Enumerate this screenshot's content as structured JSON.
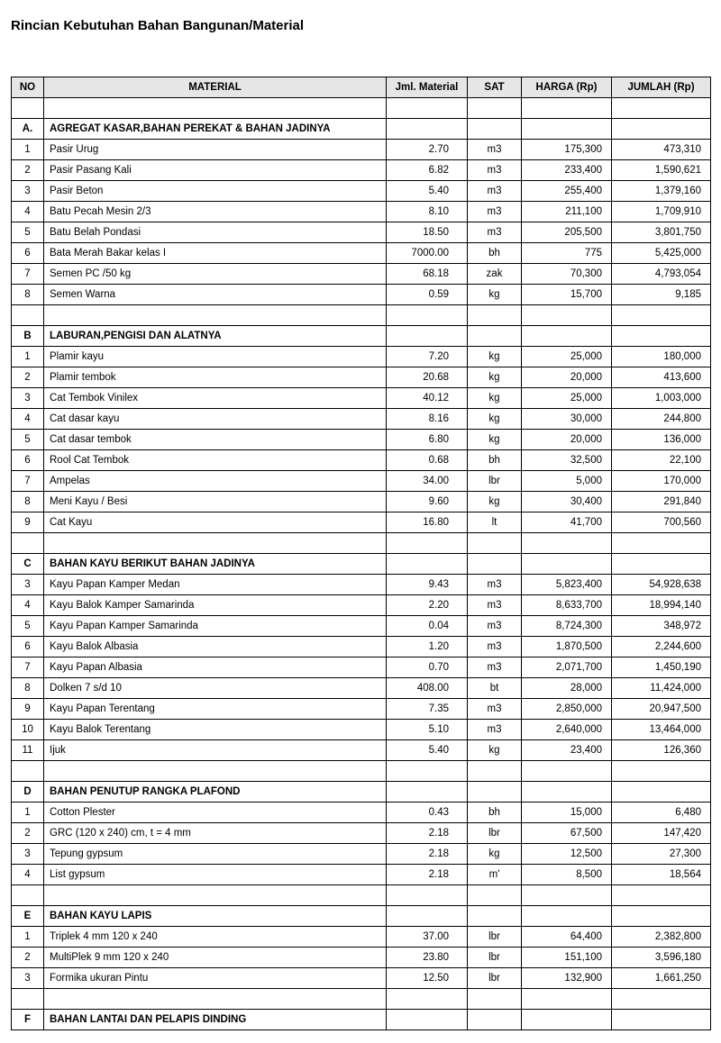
{
  "title": "Rincian Kebutuhan Bahan Bangunan/Material",
  "columns": [
    "NO",
    "MATERIAL",
    "Jml. Material",
    "SAT",
    "HARGA (Rp)",
    "JUMLAH (Rp)"
  ],
  "rows": [
    {
      "t": "blank"
    },
    {
      "t": "section",
      "no": "A.",
      "mat": "AGREGAT KASAR,BAHAN PEREKAT & BAHAN JADINYA"
    },
    {
      "t": "item",
      "no": "1",
      "mat": "Pasir Urug",
      "jml": "2.70",
      "sat": "m3",
      "hg": "175,300",
      "jm": "473,310"
    },
    {
      "t": "item",
      "no": "2",
      "mat": "Pasir Pasang Kali",
      "jml": "6.82",
      "sat": "m3",
      "hg": "233,400",
      "jm": "1,590,621"
    },
    {
      "t": "item",
      "no": "3",
      "mat": "Pasir Beton",
      "jml": "5.40",
      "sat": "m3",
      "hg": "255,400",
      "jm": "1,379,160"
    },
    {
      "t": "item",
      "no": "4",
      "mat": "Batu Pecah Mesin 2/3",
      "jml": "8.10",
      "sat": "m3",
      "hg": "211,100",
      "jm": "1,709,910"
    },
    {
      "t": "item",
      "no": "5",
      "mat": "Batu Belah Pondasi",
      "jml": "18.50",
      "sat": "m3",
      "hg": "205,500",
      "jm": "3,801,750"
    },
    {
      "t": "item",
      "no": "6",
      "mat": "Bata Merah Bakar kelas I",
      "jml": "7000.00",
      "sat": "bh",
      "hg": "775",
      "jm": "5,425,000"
    },
    {
      "t": "item",
      "no": "7",
      "mat": "Semen PC /50 kg",
      "jml": "68.18",
      "sat": "zak",
      "hg": "70,300",
      "jm": "4,793,054"
    },
    {
      "t": "item",
      "no": "8",
      "mat": "Semen Warna",
      "jml": "0.59",
      "sat": "kg",
      "hg": "15,700",
      "jm": "9,185"
    },
    {
      "t": "blank"
    },
    {
      "t": "section",
      "no": "B",
      "mat": "LABURAN,PENGISI DAN ALATNYA"
    },
    {
      "t": "item",
      "no": "1",
      "mat": "Plamir kayu",
      "jml": "7.20",
      "sat": "kg",
      "hg": "25,000",
      "jm": "180,000"
    },
    {
      "t": "item",
      "no": "2",
      "mat": "Plamir tembok",
      "jml": "20.68",
      "sat": "kg",
      "hg": "20,000",
      "jm": "413,600"
    },
    {
      "t": "item",
      "no": "3",
      "mat": "Cat Tembok Vinilex",
      "jml": "40.12",
      "sat": "kg",
      "hg": "25,000",
      "jm": "1,003,000"
    },
    {
      "t": "item",
      "no": "4",
      "mat": "Cat dasar  kayu",
      "jml": "8.16",
      "sat": "kg",
      "hg": "30,000",
      "jm": "244,800"
    },
    {
      "t": "item",
      "no": "5",
      "mat": "Cat dasar tembok",
      "jml": "6.80",
      "sat": "kg",
      "hg": "20,000",
      "jm": "136,000"
    },
    {
      "t": "item",
      "no": "6",
      "mat": "Rool Cat Tembok",
      "jml": "0.68",
      "sat": "bh",
      "hg": "32,500",
      "jm": "22,100"
    },
    {
      "t": "item",
      "no": "7",
      "mat": "Ampelas",
      "jml": "34.00",
      "sat": "lbr",
      "hg": "5,000",
      "jm": "170,000"
    },
    {
      "t": "item",
      "no": "8",
      "mat": "Meni Kayu / Besi",
      "jml": "9.60",
      "sat": "kg",
      "hg": "30,400",
      "jm": "291,840"
    },
    {
      "t": "item",
      "no": "9",
      "mat": "Cat Kayu",
      "jml": "16.80",
      "sat": "lt",
      "hg": "41,700",
      "jm": "700,560"
    },
    {
      "t": "blank"
    },
    {
      "t": "section",
      "no": "C",
      "mat": "BAHAN KAYU BERIKUT BAHAN JADINYA"
    },
    {
      "t": "item",
      "no": "3",
      "mat": "Kayu Papan Kamper Medan",
      "jml": "9.43",
      "sat": "m3",
      "hg": "5,823,400",
      "jm": "54,928,638"
    },
    {
      "t": "item",
      "no": "4",
      "mat": "Kayu Balok Kamper Samarinda",
      "jml": "2.20",
      "sat": "m3",
      "hg": "8,633,700",
      "jm": "18,994,140"
    },
    {
      "t": "item",
      "no": "5",
      "mat": "Kayu Papan Kamper Samarinda",
      "jml": "0.04",
      "sat": "m3",
      "hg": "8,724,300",
      "jm": "348,972"
    },
    {
      "t": "item",
      "no": "6",
      "mat": "Kayu Balok Albasia",
      "jml": "1.20",
      "sat": "m3",
      "hg": "1,870,500",
      "jm": "2,244,600"
    },
    {
      "t": "item",
      "no": "7",
      "mat": "Kayu Papan Albasia",
      "jml": "0.70",
      "sat": "m3",
      "hg": "2,071,700",
      "jm": "1,450,190"
    },
    {
      "t": "item",
      "no": "8",
      "mat": "Dolken 7 s/d 10",
      "jml": "408.00",
      "sat": "bt",
      "hg": "28,000",
      "jm": "11,424,000"
    },
    {
      "t": "item",
      "no": "9",
      "mat": "Kayu Papan Terentang",
      "jml": "7.35",
      "sat": "m3",
      "hg": "2,850,000",
      "jm": "20,947,500"
    },
    {
      "t": "item",
      "no": "10",
      "mat": "Kayu Balok Terentang",
      "jml": "5.10",
      "sat": "m3",
      "hg": "2,640,000",
      "jm": "13,464,000"
    },
    {
      "t": "item",
      "no": "11",
      "mat": "Ijuk",
      "jml": "5.40",
      "sat": "kg",
      "hg": "23,400",
      "jm": "126,360"
    },
    {
      "t": "blank"
    },
    {
      "t": "section",
      "no": "D",
      "mat": "BAHAN PENUTUP RANGKA PLAFOND"
    },
    {
      "t": "item",
      "no": "1",
      "mat": "Cotton Plester",
      "jml": "0.43",
      "sat": "bh",
      "hg": "15,000",
      "jm": "6,480"
    },
    {
      "t": "item",
      "no": "2",
      "mat": "GRC (120 x 240) cm, t = 4 mm",
      "jml": "2.18",
      "sat": "lbr",
      "hg": "67,500",
      "jm": "147,420"
    },
    {
      "t": "item",
      "no": "3",
      "mat": "Tepung gypsum",
      "jml": "2.18",
      "sat": "kg",
      "hg": "12,500",
      "jm": "27,300"
    },
    {
      "t": "item",
      "no": "4",
      "mat": "List gypsum",
      "jml": "2.18",
      "sat": "m'",
      "hg": "8,500",
      "jm": "18,564"
    },
    {
      "t": "blank"
    },
    {
      "t": "section",
      "no": "E",
      "mat": "BAHAN KAYU LAPIS"
    },
    {
      "t": "item",
      "no": "1",
      "mat": "Triplek 4 mm 120 x 240",
      "jml": "37.00",
      "sat": "lbr",
      "hg": "64,400",
      "jm": "2,382,800"
    },
    {
      "t": "item",
      "no": "2",
      "mat": "MultiPlek 9 mm 120 x 240",
      "jml": "23.80",
      "sat": "lbr",
      "hg": "151,100",
      "jm": "3,596,180"
    },
    {
      "t": "item",
      "no": "3",
      "mat": "Formika ukuran Pintu",
      "jml": "12.50",
      "sat": "lbr",
      "hg": "132,900",
      "jm": "1,661,250"
    },
    {
      "t": "blank"
    },
    {
      "t": "section",
      "no": "F",
      "mat": "BAHAN LANTAI DAN PELAPIS DINDING"
    }
  ]
}
